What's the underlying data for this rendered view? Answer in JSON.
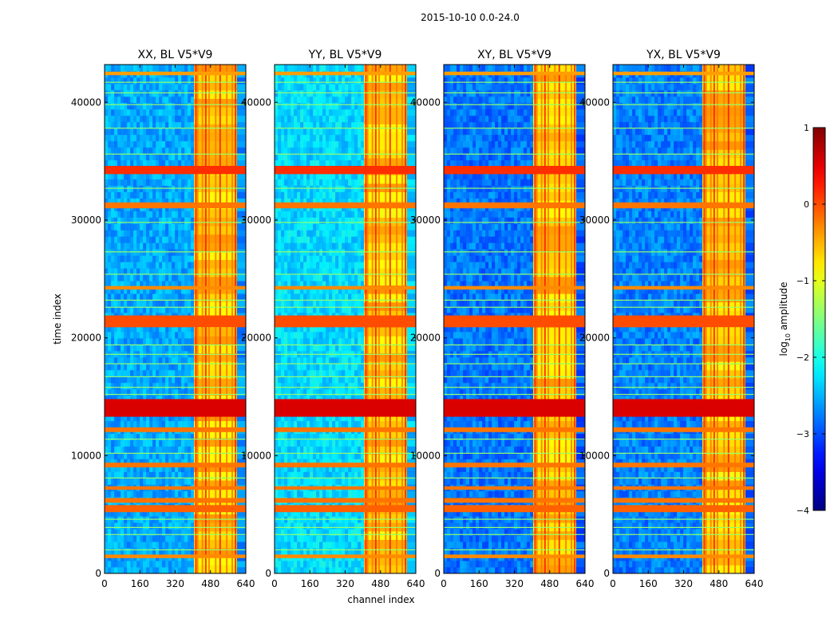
{
  "suptitle": "2015-10-10 0.0-24.0",
  "chart_data": [
    {
      "type": "heatmap",
      "title": "XX, BL V5*V9",
      "xlabel": "",
      "ylabel": "time index",
      "xlim": [
        0,
        640
      ],
      "ylim": [
        0,
        43200
      ],
      "x_ticks": [
        0,
        160,
        320,
        480,
        640
      ],
      "y_ticks": [
        0,
        10000,
        20000,
        30000,
        40000
      ],
      "base_level": -2.55,
      "band_level": 0.1
    },
    {
      "type": "heatmap",
      "title": "YY, BL V5*V9",
      "xlabel": "channel index",
      "ylabel": "",
      "xlim": [
        0,
        640
      ],
      "ylim": [
        0,
        43200
      ],
      "x_ticks": [
        0,
        160,
        320,
        480,
        640
      ],
      "y_ticks": [
        0,
        10000,
        20000,
        30000,
        40000
      ],
      "base_level": -2.3,
      "band_level": 0.1
    },
    {
      "type": "heatmap",
      "title": "XY, BL V5*V9",
      "xlabel": "",
      "ylabel": "",
      "xlim": [
        0,
        640
      ],
      "ylim": [
        0,
        43200
      ],
      "x_ticks": [
        0,
        160,
        320,
        480,
        640
      ],
      "y_ticks": [
        0,
        10000,
        20000,
        30000,
        40000
      ],
      "base_level": -2.8,
      "band_level": 0.1
    },
    {
      "type": "heatmap",
      "title": "YX, BL V5*V9",
      "xlabel": "",
      "ylabel": "",
      "xlim": [
        0,
        640
      ],
      "ylim": [
        0,
        43200
      ],
      "x_ticks": [
        0,
        160,
        320,
        480,
        640
      ],
      "y_ticks": [
        0,
        10000,
        20000,
        30000,
        40000
      ],
      "base_level": -2.75,
      "band_level": 0.1
    }
  ],
  "colorbar": {
    "label": "log10 amplitude",
    "label_base": "log",
    "label_sub": "10",
    "label_rest": " amplitude",
    "range": [
      -4,
      1
    ],
    "ticks": [
      -4,
      -3,
      -2,
      -1,
      0,
      1
    ],
    "tick_labels": [
      "−4",
      "−3",
      "−2",
      "−1",
      "0",
      "1"
    ],
    "colormap": "jet"
  },
  "features": {
    "hot_channel_range": [
      405,
      600
    ],
    "hot_channels": [
      410,
      418,
      440,
      455,
      470,
      500,
      520,
      550,
      575,
      590
    ],
    "bright_time_bands": [
      {
        "start": 13300,
        "end": 14800,
        "level": 0.55
      },
      {
        "start": 33900,
        "end": 34600,
        "level": 0.15
      },
      {
        "start": 31000,
        "end": 31500,
        "level": -0.2
      },
      {
        "start": 20900,
        "end": 21900,
        "level": 0.0
      },
      {
        "start": 24100,
        "end": 24400,
        "level": -0.3
      },
      {
        "start": 12000,
        "end": 12400,
        "level": -0.2
      },
      {
        "start": 9000,
        "end": 9400,
        "level": -0.2
      },
      {
        "start": 7100,
        "end": 7400,
        "level": -0.2
      },
      {
        "start": 6000,
        "end": 6400,
        "level": -0.2
      },
      {
        "start": 5200,
        "end": 5800,
        "level": -0.1
      },
      {
        "start": 1300,
        "end": 1600,
        "level": -0.3
      },
      {
        "start": 42300,
        "end": 42600,
        "level": -0.4
      }
    ],
    "thin_lines": [
      2000,
      3300,
      3900,
      4600,
      8100,
      10200,
      11400,
      15200,
      15800,
      16700,
      17800,
      18600,
      19400,
      22600,
      23200,
      25400,
      27300,
      29800,
      32700,
      35600,
      37800,
      39800,
      40800,
      41700
    ]
  }
}
